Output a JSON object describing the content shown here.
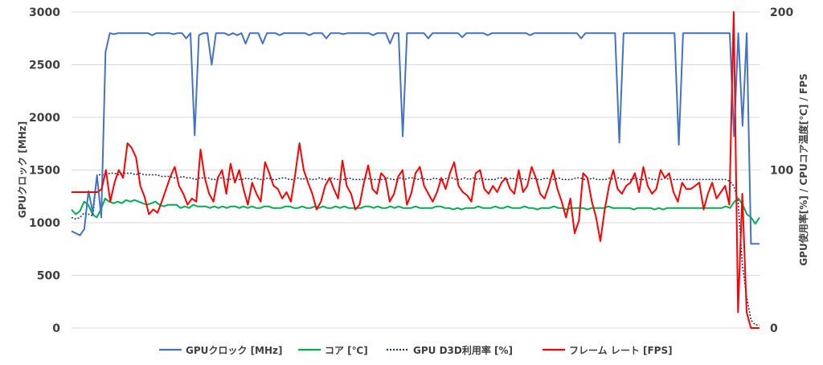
{
  "chart_data": {
    "type": "line",
    "title": "",
    "ylabel_left": "GPUクロック [MHz]",
    "ylabel_right": "GPU使用率[%] / CPUコア温度[℃] / FPS",
    "ylim_left": [
      0,
      3000
    ],
    "ylim_right": [
      0,
      200
    ],
    "yticks_left": [
      "0",
      "500",
      "1000",
      "1500",
      "2000",
      "2500",
      "3000"
    ],
    "yticks_right": [
      "0",
      "100",
      "200"
    ],
    "grid": true,
    "legend_position": "bottom",
    "series": [
      {
        "name": "GPUクロック [MHz]",
        "axis": "left",
        "color": "#4472c4",
        "dash": "solid",
        "values": [
          920,
          900,
          880,
          940,
          1300,
          1100,
          1450,
          1050,
          2620,
          2800,
          2790,
          2800,
          2800,
          2800,
          2800,
          2800,
          2800,
          2800,
          2800,
          2780,
          2800,
          2800,
          2800,
          2800,
          2790,
          2800,
          2800,
          2750,
          2800,
          1830,
          2780,
          2800,
          2800,
          2500,
          2800,
          2800,
          2800,
          2780,
          2800,
          2780,
          2800,
          2700,
          2800,
          2800,
          2800,
          2700,
          2800,
          2800,
          2800,
          2780,
          2800,
          2800,
          2800,
          2800,
          2800,
          2800,
          2780,
          2800,
          2800,
          2800,
          2750,
          2800,
          2800,
          2800,
          2790,
          2800,
          2800,
          2800,
          2800,
          2800,
          2800,
          2780,
          2800,
          2800,
          2800,
          2700,
          2800,
          2800,
          1820,
          2800,
          2800,
          2800,
          2800,
          2800,
          2750,
          2800,
          2800,
          2800,
          2800,
          2800,
          2800,
          2800,
          2760,
          2800,
          2800,
          2800,
          2800,
          2800,
          2780,
          2800,
          2800,
          2800,
          2800,
          2800,
          2800,
          2800,
          2800,
          2800,
          2780,
          2800,
          2800,
          2800,
          2800,
          2800,
          2800,
          2800,
          2800,
          2800,
          2800,
          2800,
          2750,
          2800,
          2800,
          2800,
          2800,
          2800,
          2800,
          2800,
          2800,
          1760,
          2800,
          2800,
          2800,
          2800,
          2800,
          2800,
          2800,
          2800,
          2800,
          2800,
          2800,
          2800,
          2800,
          1740,
          2800,
          2800,
          2800,
          2800,
          2800,
          2800,
          2800,
          2800,
          2800,
          2800,
          2800,
          2800,
          1820,
          2800,
          1920,
          2800,
          800,
          800,
          800
        ]
      },
      {
        "name": "コア [℃]",
        "axis": "right",
        "color": "#00b050",
        "dash": "solid",
        "values": [
          75,
          72,
          74,
          80,
          78,
          72,
          70,
          75,
          82,
          80,
          79,
          80,
          79,
          81,
          80,
          81,
          80,
          79,
          78,
          79,
          80,
          78,
          77,
          78,
          78,
          78,
          76,
          77,
          76,
          78,
          77,
          77,
          77,
          76,
          77,
          76,
          77,
          76,
          77,
          77,
          76,
          77,
          76,
          77,
          76,
          76,
          77,
          77,
          76,
          76,
          76,
          77,
          77,
          76,
          76,
          77,
          76,
          76,
          77,
          76,
          77,
          76,
          76,
          77,
          76,
          77,
          76,
          76,
          76,
          76,
          77,
          77,
          76,
          77,
          76,
          76,
          77,
          76,
          77,
          76,
          76,
          76,
          77,
          76,
          76,
          76,
          76,
          77,
          77,
          76,
          76,
          75,
          76,
          75,
          76,
          76,
          76,
          77,
          76,
          76,
          76,
          77,
          76,
          76,
          77,
          76,
          76,
          76,
          77,
          76,
          76,
          75,
          76,
          76,
          76,
          77,
          76,
          76,
          75,
          76,
          76,
          76,
          76,
          75,
          76,
          76,
          76,
          76,
          77,
          76,
          76,
          76,
          76,
          76,
          75,
          76,
          76,
          76,
          76,
          75,
          76,
          75,
          76,
          76,
          76,
          76,
          76,
          76,
          76,
          76,
          76,
          76,
          76,
          76,
          76,
          76,
          77,
          76,
          80,
          82,
          78,
          72,
          70,
          66,
          70
        ]
      },
      {
        "name": "GPU D3D利用率 [%]",
        "axis": "right",
        "color": "#203864",
        "dash": "dotted",
        "values": [
          70,
          69,
          70,
          73,
          72,
          71,
          97,
          97,
          97,
          98,
          98,
          97,
          98,
          98,
          98,
          97,
          98,
          97,
          97,
          97,
          97,
          96,
          96,
          96,
          95,
          95,
          96,
          95,
          95,
          94,
          95,
          95,
          95,
          94,
          94,
          95,
          94,
          94,
          95,
          94,
          94,
          95,
          94,
          95,
          94,
          94,
          95,
          94,
          94,
          95,
          95,
          94,
          94,
          95,
          94,
          95,
          94,
          94,
          95,
          94,
          94,
          95,
          94,
          94,
          94,
          95,
          94,
          94,
          94,
          95,
          94,
          94,
          94,
          94,
          95,
          94,
          94,
          95,
          94,
          95,
          95,
          94,
          95,
          94,
          94,
          95,
          94,
          94,
          95,
          95,
          94,
          94,
          95,
          94,
          95,
          94,
          95,
          94,
          94,
          94,
          95,
          95,
          94,
          95,
          94,
          95,
          94,
          94,
          95,
          94,
          94,
          95,
          94,
          94,
          95,
          94,
          94,
          94,
          95,
          95,
          94,
          94,
          95,
          94,
          94,
          94,
          95,
          94,
          95,
          94,
          94,
          94,
          95,
          94,
          94,
          95,
          94,
          94,
          94,
          95,
          94,
          94,
          94,
          94,
          94,
          94,
          94,
          94,
          94,
          94,
          94,
          94,
          94,
          94,
          93,
          90,
          80,
          40,
          20,
          5,
          2,
          2
        ]
      },
      {
        "name": "フレーム レート [FPS]",
        "axis": "right",
        "color": "#ff0000",
        "dash": "solid",
        "values": [
          86,
          86,
          86,
          86,
          86,
          86,
          86,
          88,
          100,
          80,
          92,
          100,
          95,
          117,
          114,
          108,
          90,
          83,
          72,
          75,
          73,
          80,
          88,
          96,
          102,
          90,
          85,
          78,
          82,
          80,
          113,
          95,
          85,
          80,
          95,
          100,
          85,
          104,
          92,
          100,
          88,
          78,
          92,
          85,
          80,
          105,
          98,
          90,
          88,
          82,
          86,
          80,
          97,
          117,
          100,
          92,
          85,
          75,
          80,
          90,
          95,
          88,
          82,
          106,
          90,
          85,
          75,
          78,
          92,
          103,
          88,
          85,
          98,
          95,
          80,
          85,
          96,
          100,
          78,
          85,
          98,
          102,
          90,
          85,
          80,
          86,
          95,
          88,
          98,
          105,
          90,
          86,
          84,
          80,
          98,
          100,
          88,
          85,
          90,
          86,
          92,
          95,
          88,
          85,
          100,
          86,
          90,
          102,
          95,
          85,
          82,
          90,
          100,
          88,
          80,
          70,
          82,
          60,
          68,
          98,
          95,
          80,
          70,
          55,
          75,
          90,
          100,
          88,
          85,
          90,
          92,
          98,
          86,
          102,
          90,
          85,
          88,
          100,
          95,
          98,
          86,
          80,
          92,
          88,
          88,
          90,
          92,
          75,
          85,
          92,
          82,
          86,
          90,
          78,
          200,
          10,
          85,
          10,
          0,
          0,
          0
        ]
      }
    ]
  },
  "legend": [
    {
      "label": "GPUクロック [MHz]",
      "color": "#4472c4",
      "dash": "solid"
    },
    {
      "label": "コア [℃]",
      "color": "#00b050",
      "dash": "solid"
    },
    {
      "label": "GPU D3D利用率 [%]",
      "color": "#203864",
      "dash": "dotted"
    },
    {
      "label": "フレーム レート [FPS]",
      "color": "#ff0000",
      "dash": "solid"
    }
  ]
}
